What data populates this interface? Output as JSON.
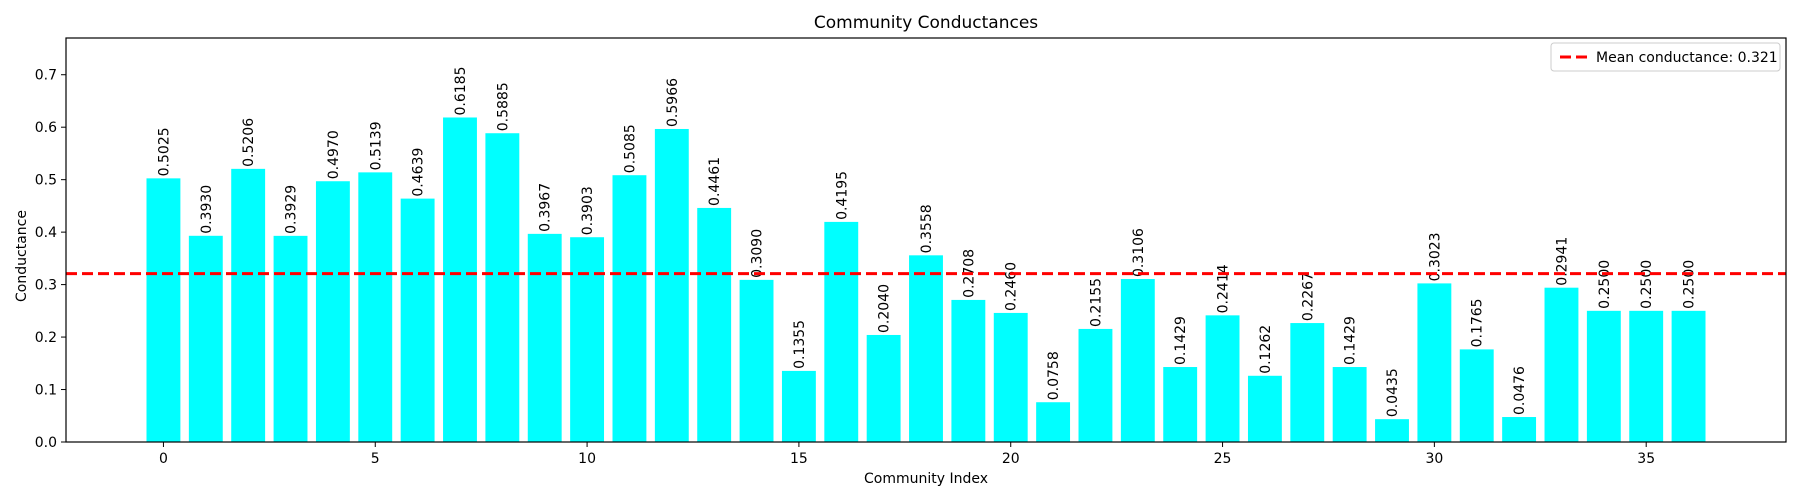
{
  "chart_data": {
    "type": "bar",
    "title": "Community Conductances",
    "xlabel": "Community Index",
    "ylabel": "Conductance",
    "x": [
      0,
      1,
      2,
      3,
      4,
      5,
      6,
      7,
      8,
      9,
      10,
      11,
      12,
      13,
      14,
      15,
      16,
      17,
      18,
      19,
      20,
      21,
      22,
      23,
      24,
      25,
      26,
      27,
      28,
      29,
      30,
      31,
      32,
      33,
      34,
      35,
      36
    ],
    "values": [
      0.5025,
      0.393,
      0.5206,
      0.3929,
      0.497,
      0.5139,
      0.4639,
      0.6185,
      0.5885,
      0.3967,
      0.3903,
      0.5085,
      0.5966,
      0.4461,
      0.309,
      0.1355,
      0.4195,
      0.204,
      0.3558,
      0.2708,
      0.246,
      0.0758,
      0.2155,
      0.3106,
      0.1429,
      0.2414,
      0.1262,
      0.2267,
      0.1429,
      0.0435,
      0.3023,
      0.1765,
      0.0476,
      0.2941,
      0.25,
      0.25,
      0.25
    ],
    "bar_labels": [
      "0.5025",
      "0.3930",
      "0.5206",
      "0.3929",
      "0.4970",
      "0.5139",
      "0.4639",
      "0.6185",
      "0.5885",
      "0.3967",
      "0.3903",
      "0.5085",
      "0.5966",
      "0.4461",
      "0.3090",
      "0.1355",
      "0.4195",
      "0.2040",
      "0.3558",
      "0.2708",
      "0.2460",
      "0.0758",
      "0.2155",
      "0.3106",
      "0.1429",
      "0.2414",
      "0.1262",
      "0.2267",
      "0.1429",
      "0.0435",
      "0.3023",
      "0.1765",
      "0.0476",
      "0.2941",
      "0.2500",
      "0.2500",
      "0.2500"
    ],
    "xlim": [
      -2.3,
      38.3
    ],
    "ylim": [
      0,
      0.77
    ],
    "xticks": [
      0,
      5,
      10,
      15,
      20,
      25,
      30,
      35
    ],
    "xtick_labels": [
      "0",
      "5",
      "10",
      "15",
      "20",
      "25",
      "30",
      "35"
    ],
    "yticks": [
      0.0,
      0.1,
      0.2,
      0.3,
      0.4,
      0.5,
      0.6,
      0.7
    ],
    "ytick_labels": [
      "0.0",
      "0.1",
      "0.2",
      "0.3",
      "0.4",
      "0.5",
      "0.6",
      "0.7"
    ],
    "mean_line": {
      "value": 0.321,
      "label": "Mean conductance: 0.321",
      "color": "#ff0000",
      "style": "dashed"
    },
    "bar_color": "#00ffff",
    "legend_position": "top-right",
    "grid": false
  }
}
